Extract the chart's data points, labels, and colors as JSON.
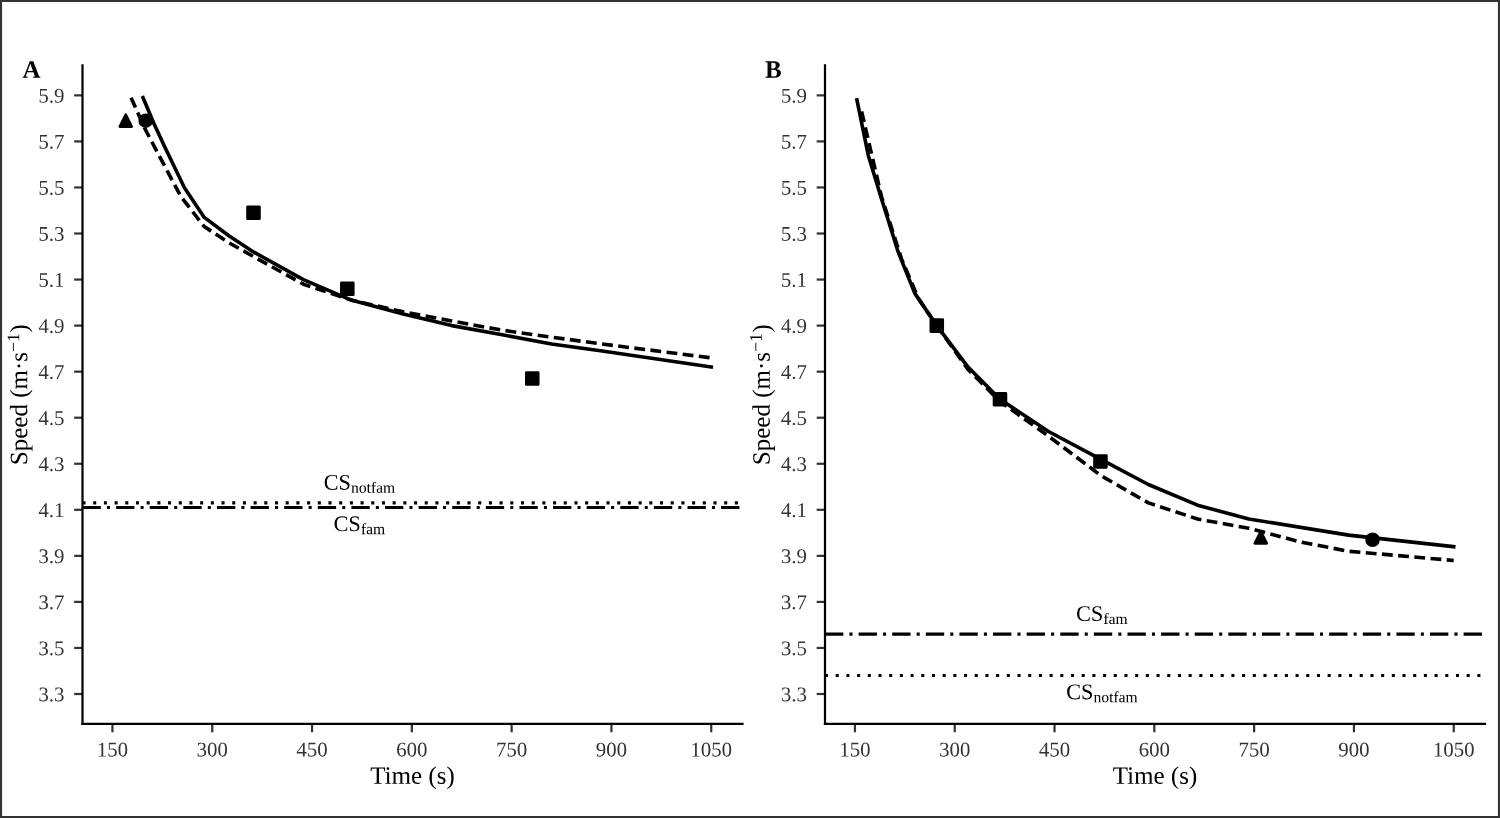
{
  "chart_data": [
    {
      "type": "line",
      "title": "A",
      "xlabel": "Time (s)",
      "ylabel": "Speed (m·s$^{−1}$)",
      "xlim": [
        105,
        1097
      ],
      "ylim": [
        3.17,
        6.03
      ],
      "xticks": [
        150,
        300,
        450,
        600,
        750,
        900,
        1050
      ],
      "yticks": [
        3.3,
        3.5,
        3.7,
        3.9,
        4.1,
        4.3,
        4.5,
        4.7,
        4.9,
        5.1,
        5.3,
        5.5,
        5.7,
        5.9
      ],
      "grid": false,
      "series": [
        {
          "line_style": "solid",
          "color": "#000000",
          "x": [
            196,
            212,
            228,
            258,
            288,
            325,
            362,
            437,
            510,
            587,
            660,
            736,
            810,
            886,
            1050
          ],
          "values": [
            5.89,
            5.78,
            5.68,
            5.5,
            5.37,
            5.29,
            5.22,
            5.1,
            5.01,
            4.95,
            4.9,
            4.86,
            4.82,
            4.79,
            4.72
          ]
        },
        {
          "line_style": "dashed",
          "color": "#000000",
          "x": [
            178,
            198,
            218,
            253,
            288,
            325,
            362,
            437,
            510,
            587,
            660,
            736,
            810,
            886,
            1050
          ],
          "values": [
            5.89,
            5.76,
            5.65,
            5.46,
            5.33,
            5.26,
            5.2,
            5.08,
            5.01,
            4.96,
            4.92,
            4.88,
            4.85,
            4.82,
            4.76
          ]
        },
        {
          "type": "scatter",
          "marker": "triangle",
          "color": "#000000",
          "x": [
            170
          ],
          "values": [
            5.79
          ]
        },
        {
          "type": "scatter",
          "marker": "circle",
          "color": "#000000",
          "x": [
            200
          ],
          "values": [
            5.79
          ]
        },
        {
          "type": "scatter",
          "marker": "square",
          "color": "#000000",
          "x": [
            362,
            503,
            781
          ],
          "values": [
            5.39,
            5.06,
            4.67
          ]
        }
      ],
      "ref_lines": [
        {
          "axis": "y",
          "value": 4.13,
          "label": "CS$_{notfam}$",
          "line_style": "dotted",
          "color": "#000000"
        },
        {
          "axis": "y",
          "value": 4.11,
          "label": "CS$_{fam}$",
          "line_style": "dashdot",
          "color": "#000000"
        }
      ]
    },
    {
      "type": "line",
      "title": "B",
      "xlabel": "Time (s)",
      "ylabel": "Speed (m·s$^{−1}$)",
      "xlim": [
        105,
        1097
      ],
      "ylim": [
        3.17,
        6.03
      ],
      "xticks": [
        150,
        300,
        450,
        600,
        750,
        900,
        1050
      ],
      "yticks": [
        3.3,
        3.5,
        3.7,
        3.9,
        4.1,
        4.3,
        4.5,
        4.7,
        4.9,
        5.1,
        5.3,
        5.5,
        5.7,
        5.9
      ],
      "grid": false,
      "series": [
        {
          "line_style": "solid",
          "color": "#000000",
          "x": [
            153,
            170,
            190,
            215,
            240,
            273,
            320,
            368,
            441,
            519,
            591,
            665,
            742,
            892,
            1050
          ],
          "values": [
            5.88,
            5.64,
            5.45,
            5.22,
            5.04,
            4.9,
            4.72,
            4.58,
            4.44,
            4.32,
            4.21,
            4.12,
            4.06,
            3.99,
            3.94
          ]
        },
        {
          "line_style": "dashed",
          "color": "#000000",
          "x": [
            160,
            190,
            220,
            245,
            273,
            320,
            368,
            441,
            519,
            591,
            665,
            742,
            820,
            892,
            1050
          ],
          "values": [
            5.83,
            5.46,
            5.19,
            5.02,
            4.9,
            4.71,
            4.57,
            4.42,
            4.25,
            4.13,
            4.06,
            4.02,
            3.96,
            3.92,
            3.88
          ]
        },
        {
          "type": "scatter",
          "marker": "square",
          "color": "#000000",
          "x": [
            273,
            368,
            519
          ],
          "values": [
            4.9,
            4.58,
            4.31
          ]
        },
        {
          "type": "scatter",
          "marker": "triangle",
          "color": "#000000",
          "x": [
            760
          ],
          "values": [
            3.98
          ]
        },
        {
          "type": "scatter",
          "marker": "circle",
          "color": "#000000",
          "x": [
            928
          ],
          "values": [
            3.97
          ]
        }
      ],
      "ref_lines": [
        {
          "axis": "y",
          "value": 3.56,
          "label": "CS$_{fam}$",
          "line_style": "dashdot",
          "color": "#000000"
        },
        {
          "axis": "y",
          "value": 3.38,
          "label": "CS$_{notfam}$",
          "line_style": "dotted",
          "color": "#000000"
        }
      ]
    }
  ]
}
